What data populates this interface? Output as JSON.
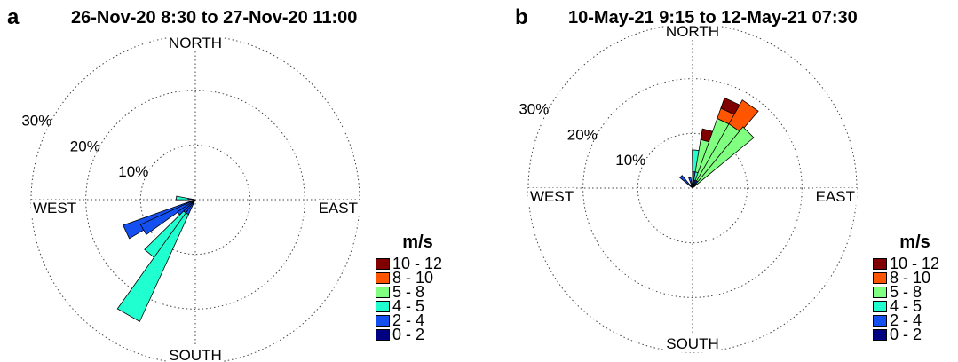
{
  "legend": {
    "title": "m/s",
    "items": [
      {
        "label": "10 - 12",
        "color": "#800000"
      },
      {
        "label": "8 - 10",
        "color": "#ff5500"
      },
      {
        "label": "5 - 8",
        "color": "#80ff80"
      },
      {
        "label": "4 - 5",
        "color": "#20ffd0"
      },
      {
        "label": "2 - 4",
        "color": "#1450f0"
      },
      {
        "label": "0 - 2",
        "color": "#000080"
      }
    ]
  },
  "directions": {
    "north": "NORTH",
    "south": "SOUTH",
    "east": "EAST",
    "west": "WEST"
  },
  "ring_labels": [
    "10%",
    "20%",
    "30%"
  ],
  "chart_data": [
    {
      "panel": "a",
      "type": "wind-rose",
      "title": "26-Nov-20 8:30 to 27-Nov-20 11:00",
      "ring_values": [
        10,
        20,
        30
      ],
      "rmax": 30,
      "speed_bins": [
        "0 - 2",
        "2 - 4",
        "4 - 5",
        "5 - 8",
        "8 - 10",
        "10 - 12"
      ],
      "sectors": [
        {
          "direction_deg": 275,
          "values": [
            0.5,
            0.8,
            2.2,
            0,
            0,
            0
          ]
        },
        {
          "direction_deg": 245,
          "values": [
            0.5,
            13.5,
            0,
            0,
            0,
            0
          ]
        },
        {
          "direction_deg": 240,
          "values": [
            0.5,
            10.5,
            0,
            0,
            0,
            0
          ]
        },
        {
          "direction_deg": 230,
          "values": [
            0.5,
            3.5,
            0,
            0,
            0,
            0
          ]
        },
        {
          "direction_deg": 220,
          "values": [
            0.5,
            2.5,
            10.0,
            0,
            0,
            0
          ]
        },
        {
          "direction_deg": 210,
          "values": [
            0.5,
            2.5,
            21.5,
            0,
            0,
            0
          ]
        }
      ]
    },
    {
      "panel": "b",
      "type": "wind-rose",
      "title": "10-May-21 9:15 to 12-May-21 07:30",
      "ring_values": [
        10,
        20,
        30
      ],
      "rmax": 30,
      "speed_bins": [
        "0 - 2",
        "2 - 4",
        "4 - 5",
        "5 - 8",
        "8 - 10",
        "10 - 12"
      ],
      "sectors": [
        {
          "direction_deg": 5,
          "values": [
            0.5,
            2.5,
            4.0,
            0,
            0,
            0
          ]
        },
        {
          "direction_deg": 15,
          "values": [
            0.5,
            1.0,
            1.5,
            6.0,
            0,
            2.0
          ]
        },
        {
          "direction_deg": 25,
          "values": [
            0.5,
            1.0,
            0,
            12.0,
            2.0,
            2.0
          ]
        },
        {
          "direction_deg": 35,
          "values": [
            0.5,
            1.0,
            0,
            12.0,
            5.0,
            0
          ]
        },
        {
          "direction_deg": 45,
          "values": [
            0.5,
            0.5,
            0,
            13.5,
            0,
            0
          ]
        },
        {
          "direction_deg": 345,
          "values": [
            0.5,
            1.5,
            0,
            0,
            0,
            0
          ]
        },
        {
          "direction_deg": 315,
          "values": [
            0.5,
            2.5,
            0,
            0,
            0,
            0
          ]
        }
      ]
    }
  ]
}
